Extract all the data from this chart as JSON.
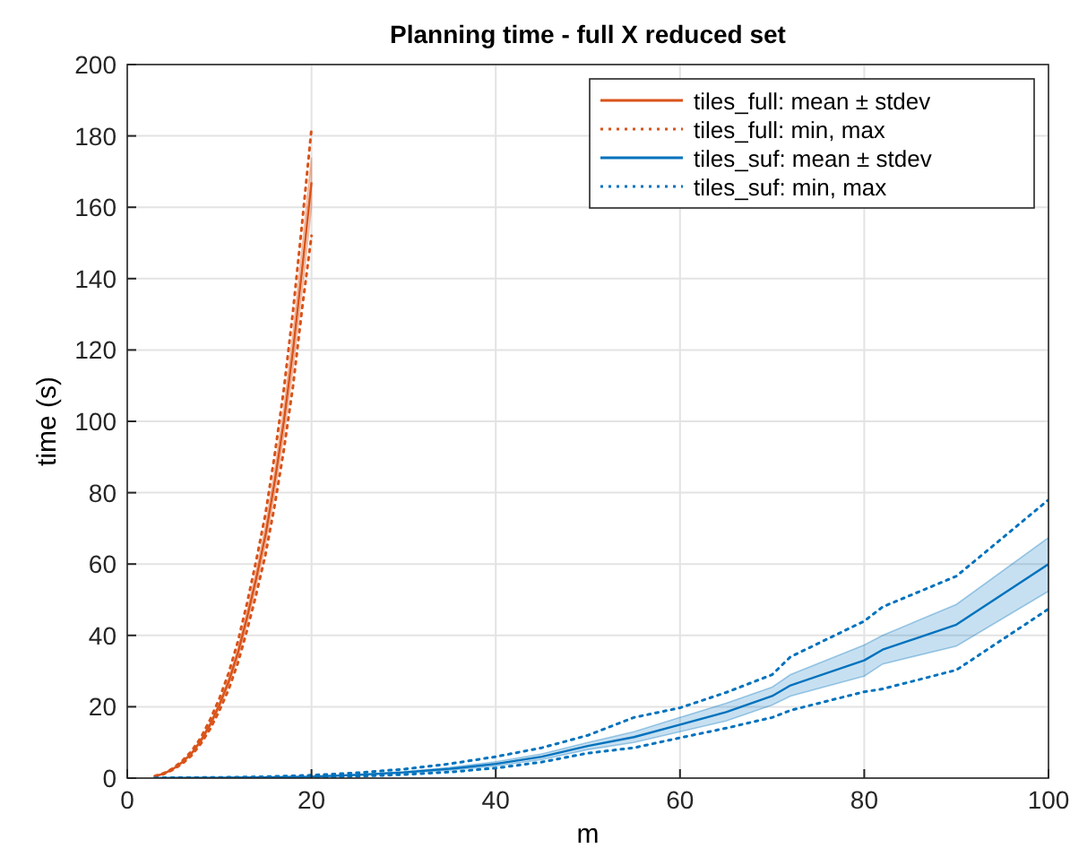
{
  "chart_data": {
    "type": "line",
    "title": "Planning time - full X reduced set",
    "xlabel": "m",
    "ylabel": "time (s)",
    "xlim": [
      0,
      100
    ],
    "ylim": [
      0,
      200
    ],
    "xticks": [
      0,
      20,
      40,
      60,
      80,
      100
    ],
    "yticks": [
      0,
      20,
      40,
      60,
      80,
      100,
      120,
      140,
      160,
      180,
      200
    ],
    "grid": true,
    "legend": "top right",
    "marker": "none",
    "series": [
      {
        "name": "tiles_full: mean ± stdev",
        "color": "#d95319",
        "line_style": "solid",
        "x": [
          3,
          4,
          5,
          6,
          7,
          8,
          9,
          10,
          11,
          12,
          13,
          14,
          15,
          16,
          17,
          18,
          19,
          20
        ],
        "values": [
          0.5,
          1.3,
          2.6,
          4.5,
          7,
          10.5,
          15,
          20.5,
          27,
          35,
          45,
          56,
          68,
          83,
          100,
          120,
          143,
          167
        ],
        "lower": [
          0.45,
          1.2,
          2.5,
          4.3,
          6.7,
          10,
          14.4,
          19.7,
          26,
          33.6,
          43.2,
          53.8,
          65.3,
          79.7,
          96,
          115,
          137,
          160
        ],
        "upper": [
          0.55,
          1.4,
          2.7,
          4.7,
          7.3,
          11,
          15.6,
          21.3,
          28,
          36.4,
          46.8,
          58.2,
          70.7,
          86.3,
          104,
          125,
          149,
          174
        ]
      },
      {
        "name": "tiles_full: min, max",
        "color": "#d95319",
        "line_style": "dotted",
        "x": [
          3,
          4,
          5,
          6,
          7,
          8,
          9,
          10,
          11,
          12,
          13,
          14,
          15,
          16,
          17,
          18,
          19,
          20
        ],
        "values": [
          0.4,
          1.2,
          2.4,
          4.1,
          6.4,
          9.7,
          13.8,
          18.9,
          24.8,
          32.2,
          41.4,
          51.5,
          62.6,
          76.4,
          92,
          110,
          132,
          152
        ]
      },
      {
        "color": "#d95319",
        "line_style": "dotted",
        "x": [
          3,
          4,
          5,
          6,
          7,
          8,
          9,
          10,
          11,
          12,
          13,
          14,
          15,
          16,
          17,
          18,
          19,
          20
        ],
        "values": [
          0.6,
          1.4,
          2.8,
          4.9,
          7.6,
          11.4,
          16.4,
          22.3,
          29.4,
          38.2,
          49,
          61,
          74,
          90.5,
          109,
          131,
          156,
          182
        ]
      },
      {
        "name": "tiles_suf: mean ± stdev",
        "color": "#0072bd",
        "line_style": "solid",
        "x": [
          3,
          5,
          10,
          15,
          20,
          25,
          30,
          35,
          40,
          45,
          50,
          55,
          60,
          65,
          70,
          72,
          80,
          82,
          90,
          100
        ],
        "values": [
          0,
          0.05,
          0.1,
          0.2,
          0.4,
          0.9,
          1.6,
          2.6,
          4,
          6,
          9,
          11.5,
          15,
          18.5,
          23,
          26,
          33,
          36,
          43,
          60
        ],
        "lower": [
          0,
          0.04,
          0.08,
          0.17,
          0.33,
          0.75,
          1.4,
          2.2,
          3.4,
          5.2,
          8,
          10,
          13,
          16,
          20.5,
          23,
          28.6,
          32,
          37,
          52.4
        ],
        "upper": [
          0,
          0.06,
          0.12,
          0.23,
          0.47,
          1.05,
          1.8,
          3,
          4.6,
          6.8,
          10,
          13,
          17,
          21,
          25.5,
          29,
          37.3,
          40,
          48.7,
          67.4
        ]
      },
      {
        "name": "tiles_suf: min, max",
        "color": "#0072bd",
        "line_style": "dotted",
        "x": [
          3,
          5,
          10,
          15,
          20,
          25,
          30,
          35,
          40,
          45,
          50,
          55,
          60,
          65,
          70,
          72,
          80,
          82,
          90,
          100
        ],
        "values": [
          0,
          0.02,
          0.05,
          0.1,
          0.2,
          0.5,
          1,
          1.7,
          2.8,
          4.5,
          7,
          8.5,
          11.3,
          14,
          17,
          19,
          24.2,
          25,
          30.3,
          47.4
        ]
      },
      {
        "color": "#0072bd",
        "line_style": "dotted",
        "x": [
          3,
          5,
          10,
          15,
          20,
          25,
          30,
          35,
          40,
          45,
          50,
          55,
          60,
          65,
          70,
          72,
          80,
          82,
          90,
          100
        ],
        "values": [
          0,
          0.1,
          0.2,
          0.4,
          0.8,
          1.5,
          2.5,
          4,
          6,
          8.5,
          12,
          17,
          19.7,
          24,
          29,
          34,
          44,
          48,
          56.6,
          78
        ]
      }
    ]
  }
}
